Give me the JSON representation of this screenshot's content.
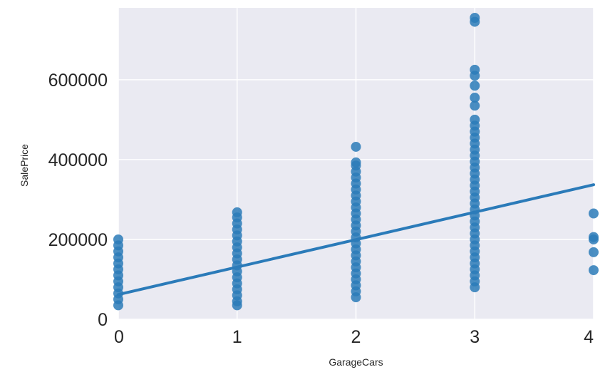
{
  "chart_data": {
    "type": "scatter",
    "xlabel": "GarageCars",
    "ylabel": "SalePrice",
    "xlim": [
      0,
      4
    ],
    "ylim": [
      0,
      780000
    ],
    "x_ticks": [
      "0",
      "1",
      "2",
      "3",
      "4"
    ],
    "y_ticks": [
      "0",
      "200000",
      "400000",
      "600000"
    ],
    "grid": true,
    "colors": {
      "background": "#eaeaf2",
      "grid": "#ffffff",
      "point": "#2b7bb9",
      "line": "#2b7bb9"
    },
    "points": [
      {
        "x": 0,
        "y": 35000
      },
      {
        "x": 0,
        "y": 50000
      },
      {
        "x": 0,
        "y": 65000
      },
      {
        "x": 0,
        "y": 80000
      },
      {
        "x": 0,
        "y": 95000
      },
      {
        "x": 0,
        "y": 110000
      },
      {
        "x": 0,
        "y": 125000
      },
      {
        "x": 0,
        "y": 140000
      },
      {
        "x": 0,
        "y": 155000
      },
      {
        "x": 0,
        "y": 170000
      },
      {
        "x": 0,
        "y": 185000
      },
      {
        "x": 0,
        "y": 200000
      },
      {
        "x": 1,
        "y": 35000
      },
      {
        "x": 1,
        "y": 45000
      },
      {
        "x": 1,
        "y": 60000
      },
      {
        "x": 1,
        "y": 75000
      },
      {
        "x": 1,
        "y": 90000
      },
      {
        "x": 1,
        "y": 105000
      },
      {
        "x": 1,
        "y": 120000
      },
      {
        "x": 1,
        "y": 135000
      },
      {
        "x": 1,
        "y": 150000
      },
      {
        "x": 1,
        "y": 165000
      },
      {
        "x": 1,
        "y": 180000
      },
      {
        "x": 1,
        "y": 195000
      },
      {
        "x": 1,
        "y": 210000
      },
      {
        "x": 1,
        "y": 225000
      },
      {
        "x": 1,
        "y": 240000
      },
      {
        "x": 1,
        "y": 255000
      },
      {
        "x": 1,
        "y": 268000
      },
      {
        "x": 2,
        "y": 55000
      },
      {
        "x": 2,
        "y": 70000
      },
      {
        "x": 2,
        "y": 85000
      },
      {
        "x": 2,
        "y": 100000
      },
      {
        "x": 2,
        "y": 115000
      },
      {
        "x": 2,
        "y": 130000
      },
      {
        "x": 2,
        "y": 145000
      },
      {
        "x": 2,
        "y": 160000
      },
      {
        "x": 2,
        "y": 175000
      },
      {
        "x": 2,
        "y": 190000
      },
      {
        "x": 2,
        "y": 205000
      },
      {
        "x": 2,
        "y": 220000
      },
      {
        "x": 2,
        "y": 235000
      },
      {
        "x": 2,
        "y": 250000
      },
      {
        "x": 2,
        "y": 265000
      },
      {
        "x": 2,
        "y": 280000
      },
      {
        "x": 2,
        "y": 295000
      },
      {
        "x": 2,
        "y": 310000
      },
      {
        "x": 2,
        "y": 325000
      },
      {
        "x": 2,
        "y": 340000
      },
      {
        "x": 2,
        "y": 355000
      },
      {
        "x": 2,
        "y": 370000
      },
      {
        "x": 2,
        "y": 385000
      },
      {
        "x": 2,
        "y": 393000
      },
      {
        "x": 2,
        "y": 432000
      },
      {
        "x": 3,
        "y": 80000
      },
      {
        "x": 3,
        "y": 95000
      },
      {
        "x": 3,
        "y": 110000
      },
      {
        "x": 3,
        "y": 125000
      },
      {
        "x": 3,
        "y": 140000
      },
      {
        "x": 3,
        "y": 155000
      },
      {
        "x": 3,
        "y": 170000
      },
      {
        "x": 3,
        "y": 185000
      },
      {
        "x": 3,
        "y": 200000
      },
      {
        "x": 3,
        "y": 215000
      },
      {
        "x": 3,
        "y": 230000
      },
      {
        "x": 3,
        "y": 245000
      },
      {
        "x": 3,
        "y": 260000
      },
      {
        "x": 3,
        "y": 275000
      },
      {
        "x": 3,
        "y": 290000
      },
      {
        "x": 3,
        "y": 305000
      },
      {
        "x": 3,
        "y": 320000
      },
      {
        "x": 3,
        "y": 335000
      },
      {
        "x": 3,
        "y": 350000
      },
      {
        "x": 3,
        "y": 365000
      },
      {
        "x": 3,
        "y": 380000
      },
      {
        "x": 3,
        "y": 395000
      },
      {
        "x": 3,
        "y": 410000
      },
      {
        "x": 3,
        "y": 425000
      },
      {
        "x": 3,
        "y": 440000
      },
      {
        "x": 3,
        "y": 455000
      },
      {
        "x": 3,
        "y": 470000
      },
      {
        "x": 3,
        "y": 485000
      },
      {
        "x": 3,
        "y": 500000
      },
      {
        "x": 3,
        "y": 535000
      },
      {
        "x": 3,
        "y": 555000
      },
      {
        "x": 3,
        "y": 585000
      },
      {
        "x": 3,
        "y": 610000
      },
      {
        "x": 3,
        "y": 625000
      },
      {
        "x": 3,
        "y": 745000
      },
      {
        "x": 3,
        "y": 755000
      },
      {
        "x": 4,
        "y": 123000
      },
      {
        "x": 4,
        "y": 168000
      },
      {
        "x": 4,
        "y": 200000
      },
      {
        "x": 4,
        "y": 206000
      },
      {
        "x": 4,
        "y": 265000
      }
    ],
    "regression_line": {
      "x": [
        0,
        4
      ],
      "y": [
        62000,
        337000
      ]
    }
  }
}
